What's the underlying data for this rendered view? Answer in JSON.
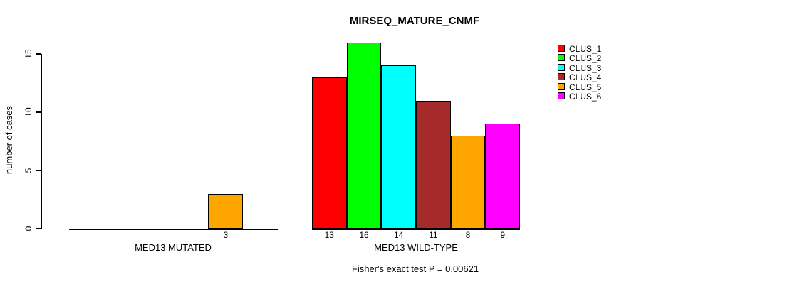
{
  "chart_data": {
    "type": "bar",
    "title": "MIRSEQ_MATURE_CNMF",
    "ylabel": "number of cases",
    "xlabel": "",
    "yticks": [
      0,
      5,
      10,
      15
    ],
    "ylim": [
      0,
      16.5
    ],
    "grid": false,
    "legend_position": "top-right",
    "series": [
      {
        "name": "CLUS_1",
        "color": "#FF0000"
      },
      {
        "name": "CLUS_2",
        "color": "#00FF00"
      },
      {
        "name": "CLUS_3",
        "color": "#00FFFF"
      },
      {
        "name": "CLUS_4",
        "color": "#A52A2A"
      },
      {
        "name": "CLUS_5",
        "color": "#FFA500"
      },
      {
        "name": "CLUS_6",
        "color": "#FF00FF"
      }
    ],
    "groups": [
      {
        "label": "MED13 MUTATED",
        "values": [
          0,
          0,
          0,
          0,
          3,
          0
        ]
      },
      {
        "label": "MED13 WILD-TYPE",
        "values": [
          13,
          16,
          14,
          11,
          8,
          9
        ]
      }
    ],
    "bar_value_labels_shown_when": "value > 0",
    "footnote": "Fisher's exact test P = 0.00621"
  },
  "colors": {
    "background": "#FFFFFF",
    "axis": "#000000",
    "text": "#000000",
    "bar_border": "#000000"
  }
}
